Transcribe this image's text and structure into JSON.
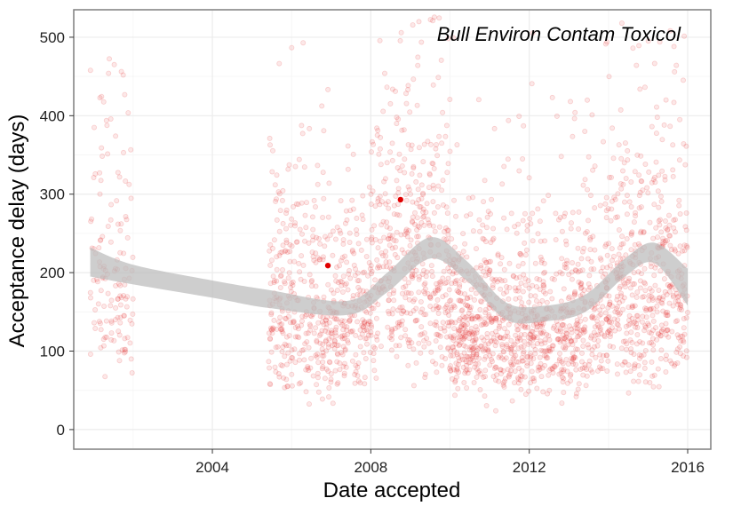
{
  "chart_data": {
    "type": "scatter",
    "title": "",
    "annotation": "Bull Environ Contam Toxicol",
    "xlabel": "Date accepted",
    "ylabel": "Acceptance delay (days)",
    "x_scale": "date",
    "xlim": [
      "2000-07-01",
      "2016-08-01"
    ],
    "ylim": [
      -25,
      535
    ],
    "x_ticks": [
      "2004",
      "2008",
      "2012",
      "2016"
    ],
    "y_ticks": [
      "0",
      "100",
      "200",
      "300",
      "400",
      "500"
    ],
    "grid": true,
    "legend": "none",
    "colors": {
      "points": "#e31a1c",
      "highlight": "#e00000",
      "band": "#bdbdbd",
      "grid_major": "#ececec",
      "grid_minor": "#f6f6f6",
      "border": "#7f7f7f"
    },
    "series": [
      {
        "kind": "points",
        "approximate_count": 2600,
        "density_profile": [
          {
            "from": "2000-12-01",
            "to": "2002-01-01",
            "median_y": 200,
            "y_range": [
              15,
              490
            ],
            "relative_density": 0.5
          },
          {
            "from": "2005-06-01",
            "to": "2008-01-01",
            "median_y": 150,
            "y_range": [
              10,
              500
            ],
            "relative_density": 0.8
          },
          {
            "from": "2008-01-01",
            "to": "2010-01-01",
            "median_y": 200,
            "y_range": [
              10,
              530
            ],
            "relative_density": 0.9
          },
          {
            "from": "2010-01-01",
            "to": "2013-06-01",
            "median_y": 130,
            "y_range": [
              5,
              520
            ],
            "relative_density": 1.0
          },
          {
            "from": "2013-06-01",
            "to": "2016-01-01",
            "median_y": 180,
            "y_range": [
              5,
              520
            ],
            "relative_density": 0.9
          }
        ]
      },
      {
        "kind": "highlighted-points",
        "points": [
          {
            "x": "2006-12-01",
            "y": 209
          },
          {
            "x": "2008-10-01",
            "y": 293
          }
        ]
      },
      {
        "kind": "smooth-confidence-band",
        "points": [
          {
            "x": "2000-12-01",
            "lower": 195,
            "upper": 232
          },
          {
            "x": "2002-01-01",
            "lower": 185,
            "upper": 210
          },
          {
            "x": "2004-01-01",
            "lower": 168,
            "upper": 190
          },
          {
            "x": "2005-06-01",
            "lower": 155,
            "upper": 178
          },
          {
            "x": "2007-06-01",
            "lower": 146,
            "upper": 164
          },
          {
            "x": "2008-06-01",
            "lower": 175,
            "upper": 200
          },
          {
            "x": "2009-07-01",
            "lower": 218,
            "upper": 245
          },
          {
            "x": "2010-06-01",
            "lower": 190,
            "upper": 215
          },
          {
            "x": "2011-06-01",
            "lower": 140,
            "upper": 162
          },
          {
            "x": "2012-06-01",
            "lower": 138,
            "upper": 158
          },
          {
            "x": "2013-06-01",
            "lower": 150,
            "upper": 172
          },
          {
            "x": "2014-06-01",
            "lower": 195,
            "upper": 218
          },
          {
            "x": "2015-03-01",
            "lower": 212,
            "upper": 238
          },
          {
            "x": "2016-01-01",
            "lower": 158,
            "upper": 205
          }
        ]
      }
    ]
  }
}
